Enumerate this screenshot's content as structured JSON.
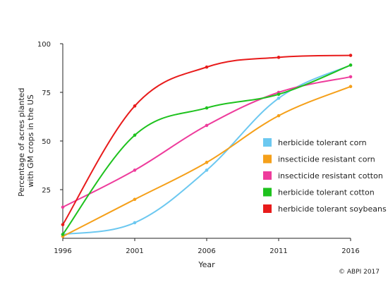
{
  "chart_data": {
    "type": "line",
    "x": [
      1996,
      2001,
      2006,
      2011,
      2016
    ],
    "xlabel": "Year",
    "ylabel": "Percentage of acres planted with GM crops in the US",
    "ylabel_lines": [
      "Percentage of acres planted",
      "with GM crops in the US"
    ],
    "xlim": [
      1996,
      2016
    ],
    "ylim": [
      0,
      100
    ],
    "xticks": [
      "1996",
      "2001",
      "2006",
      "2011",
      "2016"
    ],
    "yticks": [
      "25",
      "50",
      "75",
      "100"
    ],
    "grid": false,
    "legend_position": "right",
    "series": [
      {
        "name": "herbicide tolerant corn",
        "color": "#6cc8f0",
        "values": [
          2,
          8,
          35,
          72,
          89
        ]
      },
      {
        "name": "insecticide resistant corn",
        "color": "#f5a01a",
        "values": [
          1,
          20,
          39,
          63,
          78
        ]
      },
      {
        "name": "insecticide resistant cotton",
        "color": "#ee3c9c",
        "values": [
          16,
          35,
          58,
          75,
          83
        ]
      },
      {
        "name": "herbicide tolerant cotton",
        "color": "#1ec21e",
        "values": [
          2,
          53,
          67,
          74,
          89
        ]
      },
      {
        "name": "herbicide tolerant soybeans",
        "color": "#e81b1b",
        "values": [
          7,
          68,
          88,
          93,
          94
        ]
      }
    ],
    "credit": "© ABPI 2017"
  }
}
